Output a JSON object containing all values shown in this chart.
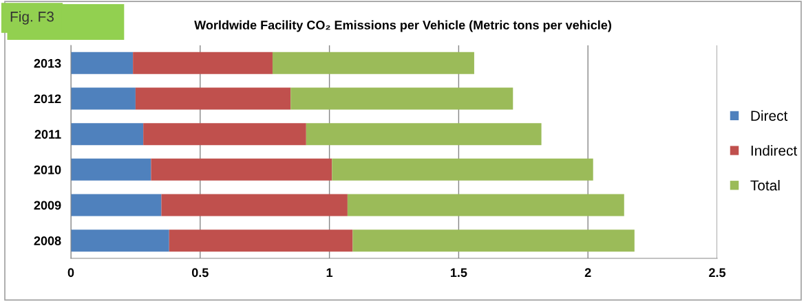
{
  "chart_data": {
    "type": "bar",
    "orientation": "horizontal",
    "stacked": true,
    "title": "Worldwide Facility CO₂ Emissions per Vehicle (Metric tons per vehicle)",
    "annotations": [
      "Fig. F3"
    ],
    "categories": [
      "2013",
      "2012",
      "2011",
      "2010",
      "2009",
      "2008"
    ],
    "series": [
      {
        "name": "Direct",
        "color": "#4f81bd",
        "values": [
          0.24,
          0.25,
          0.28,
          0.31,
          0.35,
          0.38
        ]
      },
      {
        "name": "Indirect",
        "color": "#c0504d",
        "values": [
          0.54,
          0.6,
          0.63,
          0.7,
          0.72,
          0.71
        ]
      },
      {
        "name": "Total",
        "color": "#9bbb59",
        "values": [
          0.78,
          0.86,
          0.91,
          1.01,
          1.07,
          1.09
        ]
      }
    ],
    "xlim": [
      0,
      2.5
    ],
    "xticks": [
      0,
      0.5,
      1,
      1.5,
      2,
      2.5
    ],
    "grid": "x",
    "legend": "right"
  }
}
